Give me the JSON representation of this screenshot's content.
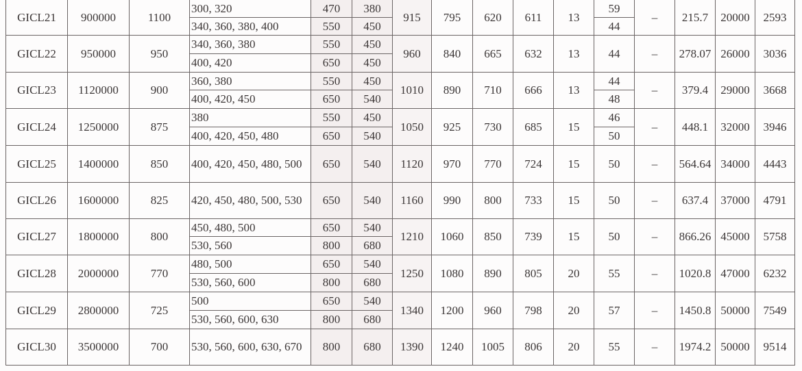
{
  "table": {
    "rows": [
      {
        "model": "GICL21",
        "torque": "900000",
        "speed": "1100",
        "sub": [
          [
            "300, 320",
            "470",
            "380"
          ],
          [
            "340, 360, 380, 400",
            "550",
            "450"
          ]
        ],
        "dims": [
          "915",
          "795",
          "620",
          "611",
          "13"
        ],
        "e": [
          "59",
          "44"
        ],
        "dash": "–",
        "m": "215.7",
        "n": "20000",
        "w": "2593"
      },
      {
        "model": "GICL22",
        "torque": "950000",
        "speed": "950",
        "sub": [
          [
            "340, 360, 380",
            "550",
            "450"
          ],
          [
            "400, 420",
            "650",
            "450"
          ]
        ],
        "dims": [
          "960",
          "840",
          "665",
          "632",
          "13"
        ],
        "e": [
          "44"
        ],
        "dash": "–",
        "m": "278.07",
        "n": "26000",
        "w": "3036"
      },
      {
        "model": "GICL23",
        "torque": "1120000",
        "speed": "900",
        "sub": [
          [
            "360, 380",
            "550",
            "450"
          ],
          [
            "400, 420, 450",
            "650",
            "540"
          ]
        ],
        "dims": [
          "1010",
          "890",
          "710",
          "666",
          "13"
        ],
        "e": [
          "44",
          "48"
        ],
        "dash": "–",
        "m": "379.4",
        "n": "29000",
        "w": "3668"
      },
      {
        "model": "GICL24",
        "torque": "1250000",
        "speed": "875",
        "sub": [
          [
            "380",
            "550",
            "450"
          ],
          [
            "400, 420, 450, 480",
            "650",
            "540"
          ]
        ],
        "dims": [
          "1050",
          "925",
          "730",
          "685",
          "15"
        ],
        "e": [
          "46",
          "50"
        ],
        "dash": "–",
        "m": "448.1",
        "n": "32000",
        "w": "3946"
      },
      {
        "model": "GICL25",
        "torque": "1400000",
        "speed": "850",
        "sub": [
          [
            "400, 420, 450, 480, 500",
            "650",
            "540"
          ]
        ],
        "dims": [
          "1120",
          "970",
          "770",
          "724",
          "15"
        ],
        "e": [
          "50"
        ],
        "dash": "–",
        "m": "564.64",
        "n": "34000",
        "w": "4443"
      },
      {
        "model": "GICL26",
        "torque": "1600000",
        "speed": "825",
        "sub": [
          [
            "420, 450, 480, 500, 530",
            "650",
            "540"
          ]
        ],
        "dims": [
          "1160",
          "990",
          "800",
          "733",
          "15"
        ],
        "e": [
          "50"
        ],
        "dash": "–",
        "m": "637.4",
        "n": "37000",
        "w": "4791"
      },
      {
        "model": "GICL27",
        "torque": "1800000",
        "speed": "800",
        "sub": [
          [
            "450, 480, 500",
            "650",
            "540"
          ],
          [
            "530, 560",
            "800",
            "680"
          ]
        ],
        "dims": [
          "1210",
          "1060",
          "850",
          "739",
          "15"
        ],
        "e": [
          "50"
        ],
        "dash": "–",
        "m": "866.26",
        "n": "45000",
        "w": "5758"
      },
      {
        "model": "GICL28",
        "torque": "2000000",
        "speed": "770",
        "sub": [
          [
            "480, 500",
            "650",
            "540"
          ],
          [
            "530, 560, 600",
            "800",
            "680"
          ]
        ],
        "dims": [
          "1250",
          "1080",
          "890",
          "805",
          "20"
        ],
        "e": [
          "55"
        ],
        "dash": "–",
        "m": "1020.8",
        "n": "47000",
        "w": "6232"
      },
      {
        "model": "GICL29",
        "torque": "2800000",
        "speed": "725",
        "sub": [
          [
            "500",
            "650",
            "540"
          ],
          [
            "530, 560, 600, 630",
            "800",
            "680"
          ]
        ],
        "dims": [
          "1340",
          "1200",
          "960",
          "798",
          "20"
        ],
        "e": [
          "57"
        ],
        "dash": "–",
        "m": "1450.8",
        "n": "50000",
        "w": "7549"
      },
      {
        "model": "GICL30",
        "torque": "3500000",
        "speed": "700",
        "sub": [
          [
            "530, 560, 600, 630, 670",
            "800",
            "680"
          ]
        ],
        "dims": [
          "1390",
          "1240",
          "1005",
          "806",
          "20"
        ],
        "e": [
          "55"
        ],
        "dash": "–",
        "m": "1974.2",
        "n": "50000",
        "w": "9514"
      }
    ]
  }
}
